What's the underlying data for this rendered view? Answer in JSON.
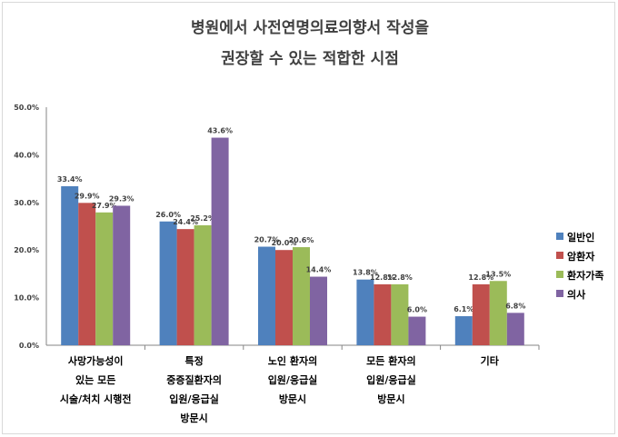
{
  "chart_data": {
    "type": "bar",
    "title_lines": [
      "병원에서 사전연명의료의향서 작성을",
      "권장할 수 있는 적합한 시점"
    ],
    "categories": [
      [
        "사망가능성이",
        "있는 모든",
        "시술/처치 시행전"
      ],
      [
        "특정",
        "중증질환자의",
        "입원/응급실",
        "방문시"
      ],
      [
        "노인 환자의",
        "입원/응급실",
        "방문시"
      ],
      [
        "모든 환자의",
        "입원/응급실",
        "방문시"
      ],
      [
        "기타"
      ]
    ],
    "series": [
      {
        "name": "일반인",
        "color": "#4f81bd",
        "values": [
          33.4,
          26.0,
          20.7,
          13.8,
          6.1
        ]
      },
      {
        "name": "암환자",
        "color": "#c0504d",
        "values": [
          29.9,
          24.4,
          20.0,
          12.8,
          12.8
        ]
      },
      {
        "name": "환자가족",
        "color": "#9bbb59",
        "values": [
          27.9,
          25.2,
          20.6,
          12.8,
          13.5
        ]
      },
      {
        "name": "의사",
        "color": "#8064a2",
        "values": [
          29.3,
          43.6,
          14.4,
          6.0,
          6.8
        ]
      }
    ],
    "ylim": [
      0,
      50
    ],
    "yticks": [
      "0.0%",
      "10.0%",
      "20.0%",
      "30.0%",
      "40.0%",
      "50.0%"
    ],
    "value_suffix": "%",
    "grid": false,
    "legend_position": "right"
  }
}
